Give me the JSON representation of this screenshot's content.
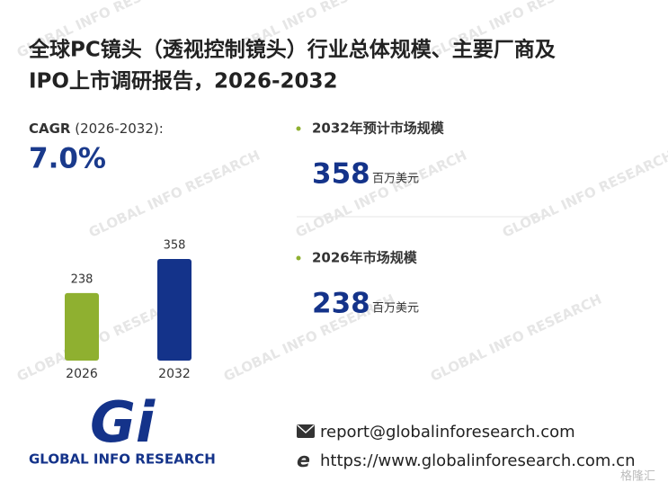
{
  "title_lines": [
    "全球PC镜头（透视控制镜头）行业总体规模、主要厂商及",
    "IPO上市调研报告，2026-2032"
  ],
  "cagr": {
    "label": "CAGR",
    "period": "(2026-2032):",
    "value": "7.0%"
  },
  "stats": [
    {
      "label": "2032年预计市场规模",
      "value": 358,
      "unit": "百万美元"
    },
    {
      "label": "2026年市场规模",
      "value": 238,
      "unit": "百万美元"
    }
  ],
  "chart_data": {
    "type": "bar",
    "categories": [
      "2026",
      "2032"
    ],
    "values": [
      238,
      358
    ],
    "colors": [
      "#8fb030",
      "#14338a"
    ]
  },
  "logo": {
    "mark": "Gi",
    "name": "GLOBAL INFO RESEARCH"
  },
  "contact": {
    "email": "report@globalinforesearch.com",
    "url": "https://www.globalinforesearch.com.cn"
  },
  "watermark": "GLOBAL INFO RESEARCH",
  "corner_mark": "格隆汇"
}
